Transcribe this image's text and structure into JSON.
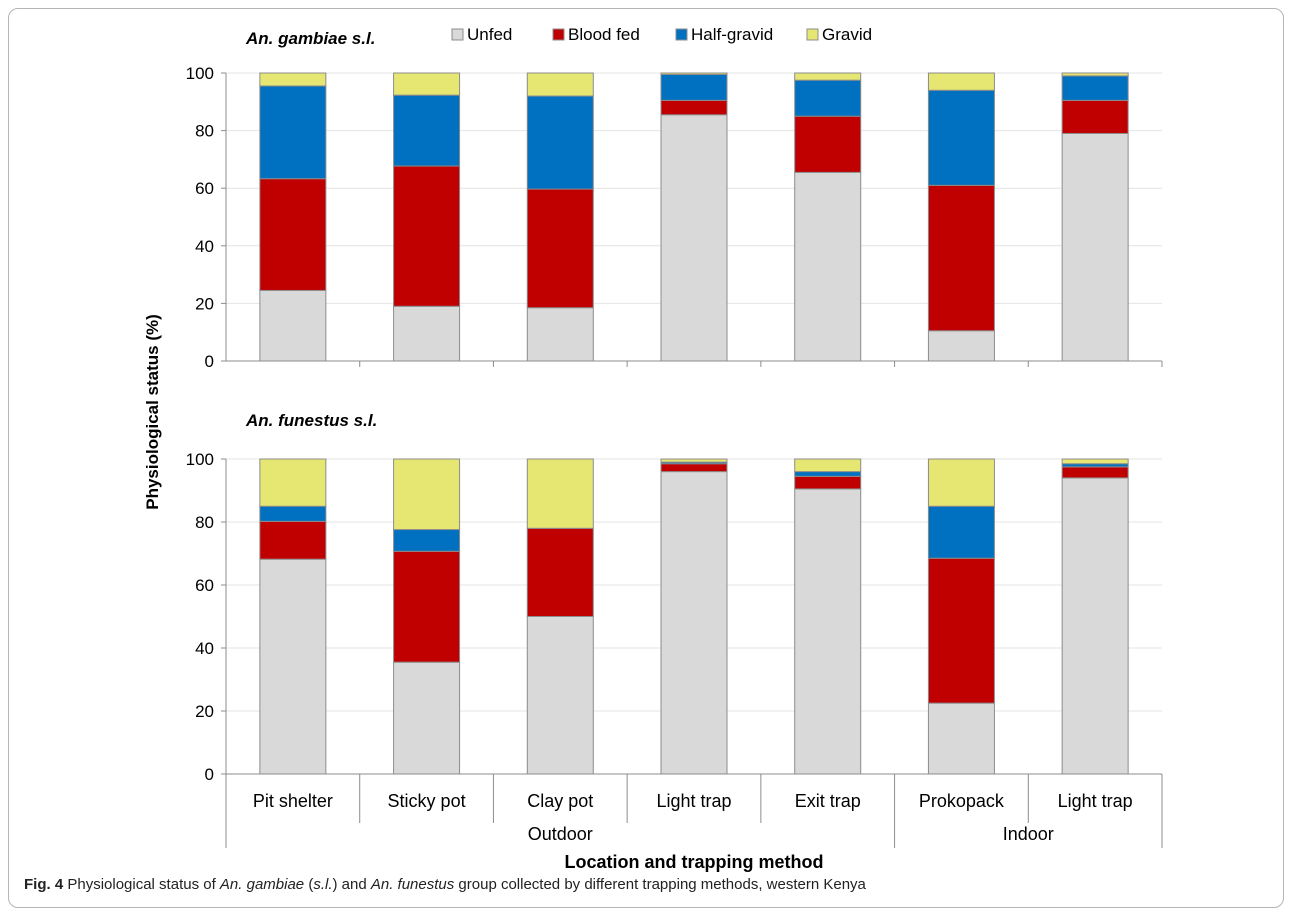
{
  "chart_data": {
    "type": "bar",
    "stacked": true,
    "ylabel": "Physiological status (%)",
    "xlabel": "Location and trapping method",
    "ylim": [
      0,
      100
    ],
    "yticks": [
      0,
      20,
      40,
      60,
      80,
      100
    ],
    "grid": true,
    "legend": {
      "placement": "top-center",
      "entries": [
        "Unfed",
        "Blood fed",
        "Half-gravid",
        "Gravid"
      ]
    },
    "colors": {
      "Unfed": "#d9d9d9",
      "Blood fed": "#c00000",
      "Half-gravid": "#0070c0",
      "Gravid": "#e6e673"
    },
    "categories": [
      "Pit shelter",
      "Sticky pot",
      "Clay pot",
      "Light trap",
      "Exit trap",
      "Prokopack",
      "Light trap"
    ],
    "groups": [
      {
        "label": "Outdoor",
        "start": 0,
        "end": 4
      },
      {
        "label": "Indoor",
        "start": 5,
        "end": 6
      }
    ],
    "panels": [
      {
        "title": "An. gambiae s.l.",
        "series": [
          {
            "name": "Unfed",
            "values": [
              24.5,
              19,
              18.5,
              85.5,
              65.5,
              10.5,
              79
            ]
          },
          {
            "name": "Blood fed",
            "values": [
              38.8,
              48.7,
              41.2,
              5,
              19.5,
              50.5,
              11.5
            ]
          },
          {
            "name": "Half-gravid",
            "values": [
              32.2,
              24.6,
              32.3,
              9,
              12.5,
              33,
              8.5
            ]
          },
          {
            "name": "Gravid",
            "values": [
              4.5,
              7.7,
              8,
              0.5,
              2.5,
              6,
              1
            ]
          }
        ]
      },
      {
        "title": "An. funestus s.l.",
        "series": [
          {
            "name": "Unfed",
            "values": [
              68.2,
              35.5,
              50,
              96,
              90.5,
              22.5,
              94
            ]
          },
          {
            "name": "Blood fed",
            "values": [
              12,
              35.2,
              28,
              2.5,
              4,
              46,
              3.5
            ]
          },
          {
            "name": "Half-gravid",
            "values": [
              4.8,
              6.9,
              0,
              0.5,
              1.5,
              16.5,
              1
            ]
          },
          {
            "name": "Gravid",
            "values": [
              15,
              22.4,
              22,
              1,
              4,
              15,
              1.5
            ]
          }
        ]
      }
    ]
  },
  "caption": {
    "label": "Fig. 4",
    "text_1": "Physiological status of ",
    "species_1": "An. gambiae",
    "text_2": " (",
    "sl": "s.l.",
    "text_3": ") and ",
    "species_2": "An. funestus",
    "text_4": " group collected by different trapping methods, western Kenya"
  }
}
